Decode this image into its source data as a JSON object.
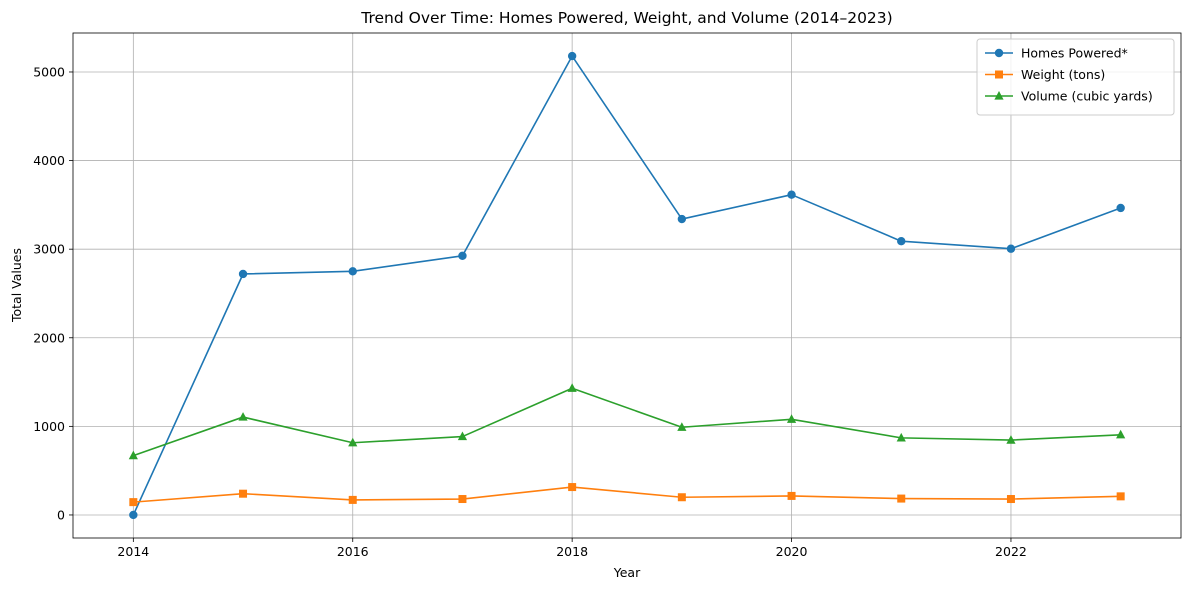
{
  "chart_data": {
    "type": "line",
    "title": "Trend Over Time: Homes Powered, Weight, and Volume (2014–2023)",
    "xlabel": "Year",
    "ylabel": "Total Values",
    "x": [
      2014,
      2015,
      2016,
      2017,
      2018,
      2019,
      2020,
      2021,
      2022,
      2023
    ],
    "xlim": [
      2013.45,
      2023.55
    ],
    "ylim": [
      -260,
      5440
    ],
    "xticks": [
      2014,
      2016,
      2018,
      2020,
      2022
    ],
    "yticks": [
      0,
      1000,
      2000,
      3000,
      4000,
      5000
    ],
    "grid": true,
    "legend_position": "top-right",
    "series": [
      {
        "name": "Homes Powered*",
        "marker": "circle",
        "color": "#1f77b4",
        "values": [
          0,
          2720,
          2750,
          2925,
          5180,
          3340,
          3615,
          3090,
          3005,
          3465
        ]
      },
      {
        "name": "Weight (tons)",
        "marker": "square",
        "color": "#ff7f0e",
        "values": [
          145,
          240,
          170,
          180,
          315,
          200,
          215,
          185,
          180,
          210
        ]
      },
      {
        "name": "Volume (cubic yards)",
        "marker": "triangle",
        "color": "#2ca02c",
        "values": [
          670,
          1105,
          815,
          885,
          1430,
          990,
          1080,
          870,
          845,
          905
        ]
      }
    ]
  }
}
